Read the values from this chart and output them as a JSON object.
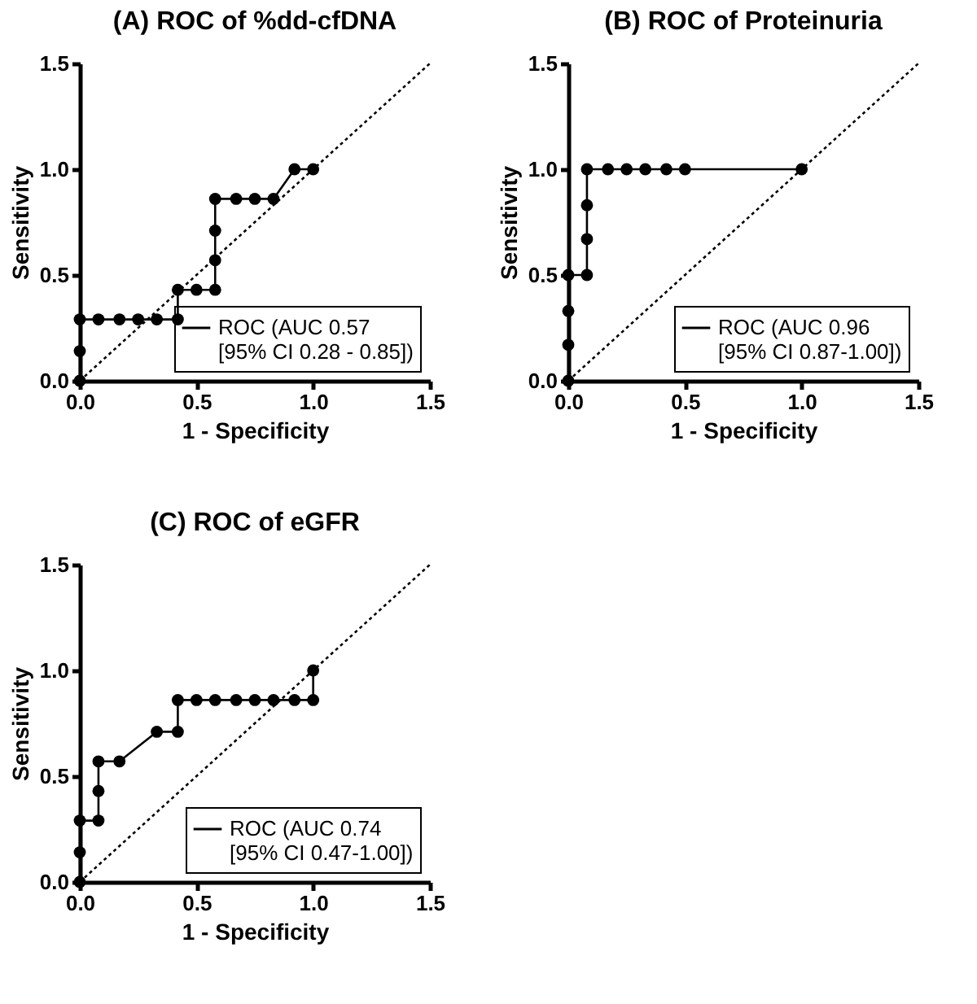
{
  "chart_data": [
    {
      "type": "line",
      "title": "(A) ROC of %dd-cfDNA",
      "xlabel": "1 - Specificity",
      "ylabel": "Sensitivity",
      "xlim": [
        0,
        1.5
      ],
      "ylim": [
        0,
        1.5
      ],
      "xticks": [
        {
          "value": 0,
          "label": "0.0"
        },
        {
          "value": 0.5,
          "label": "0.5"
        },
        {
          "value": 1,
          "label": "1.0"
        },
        {
          "value": 1.5,
          "label": "1.5"
        }
      ],
      "yticks": [
        {
          "value": 0,
          "label": "0.0"
        },
        {
          "value": 0.5,
          "label": "0.5"
        },
        {
          "value": 1,
          "label": "1.0"
        },
        {
          "value": 1.5,
          "label": "1.5"
        }
      ],
      "legend": "bottom right",
      "series": [
        {
          "name": "ROC (AUC 0.57\n[95% CI 0.28 - 0.85])",
          "color": "#000000",
          "marker": "circle",
          "x": [
            0,
            0,
            0,
            0.08,
            0.17,
            0.25,
            0.33,
            0.42,
            0.42,
            0.5,
            0.58,
            0.58,
            0.58,
            0.58,
            0.67,
            0.75,
            0.83,
            0.92,
            1.0
          ],
          "values": [
            0,
            0.14,
            0.29,
            0.29,
            0.29,
            0.29,
            0.29,
            0.29,
            0.43,
            0.43,
            0.43,
            0.57,
            0.71,
            0.86,
            0.86,
            0.86,
            0.86,
            1.0,
            1.0
          ]
        },
        {
          "color": "#000000",
          "marker": "none",
          "line_style": "dotted",
          "x": [
            0,
            1.5
          ],
          "values": [
            0,
            1.5
          ]
        }
      ]
    },
    {
      "type": "line",
      "title": "(B) ROC of Proteinuria",
      "xlabel": "1 - Specificity",
      "ylabel": "Sensitivity",
      "xlim": [
        0,
        1.5
      ],
      "ylim": [
        0,
        1.5
      ],
      "xticks": [
        {
          "value": 0,
          "label": "0.0"
        },
        {
          "value": 0.5,
          "label": "0.5"
        },
        {
          "value": 1,
          "label": "1.0"
        },
        {
          "value": 1.5,
          "label": "1.5"
        }
      ],
      "yticks": [
        {
          "value": 0,
          "label": "0.0"
        },
        {
          "value": 0.5,
          "label": "0.5"
        },
        {
          "value": 1,
          "label": "1.0"
        },
        {
          "value": 1.5,
          "label": "1.5"
        }
      ],
      "legend": "bottom right",
      "series": [
        {
          "name": "ROC (AUC 0.96\n[95% CI 0.87-1.00])",
          "color": "#000000",
          "marker": "circle",
          "x": [
            0,
            0,
            0,
            0,
            0.08,
            0.08,
            0.08,
            0.08,
            0.17,
            0.25,
            0.33,
            0.42,
            0.5,
            1.0
          ],
          "values": [
            0,
            0.17,
            0.33,
            0.5,
            0.5,
            0.67,
            0.83,
            1.0,
            1.0,
            1.0,
            1.0,
            1.0,
            1.0,
            1.0
          ]
        },
        {
          "color": "#000000",
          "marker": "none",
          "line_style": "dotted",
          "x": [
            0,
            1.5
          ],
          "values": [
            0,
            1.5
          ]
        }
      ]
    },
    {
      "type": "line",
      "title": "(C) ROC of eGFR",
      "xlabel": "1 - Specificity",
      "ylabel": "Sensitivity",
      "xlim": [
        0,
        1.5
      ],
      "ylim": [
        0,
        1.5
      ],
      "xticks": [
        {
          "value": 0,
          "label": "0.0"
        },
        {
          "value": 0.5,
          "label": "0.5"
        },
        {
          "value": 1,
          "label": "1.0"
        },
        {
          "value": 1.5,
          "label": "1.5"
        }
      ],
      "yticks": [
        {
          "value": 0,
          "label": "0.0"
        },
        {
          "value": 0.5,
          "label": "0.5"
        },
        {
          "value": 1,
          "label": "1.0"
        },
        {
          "value": 1.5,
          "label": "1.5"
        }
      ],
      "legend": "bottom right",
      "series": [
        {
          "name": "ROC (AUC 0.74\n[95% CI 0.47-1.00])",
          "color": "#000000",
          "marker": "circle",
          "x": [
            0,
            0,
            0,
            0.08,
            0.08,
            0.08,
            0.17,
            0.33,
            0.42,
            0.42,
            0.5,
            0.58,
            0.67,
            0.75,
            0.83,
            0.92,
            1.0,
            1.0
          ],
          "values": [
            0,
            0.14,
            0.29,
            0.29,
            0.43,
            0.57,
            0.57,
            0.71,
            0.71,
            0.86,
            0.86,
            0.86,
            0.86,
            0.86,
            0.86,
            0.86,
            0.86,
            1.0
          ]
        },
        {
          "color": "#000000",
          "marker": "none",
          "line_style": "dotted",
          "x": [
            0,
            1.5
          ],
          "values": [
            0,
            1.5
          ]
        }
      ]
    }
  ]
}
